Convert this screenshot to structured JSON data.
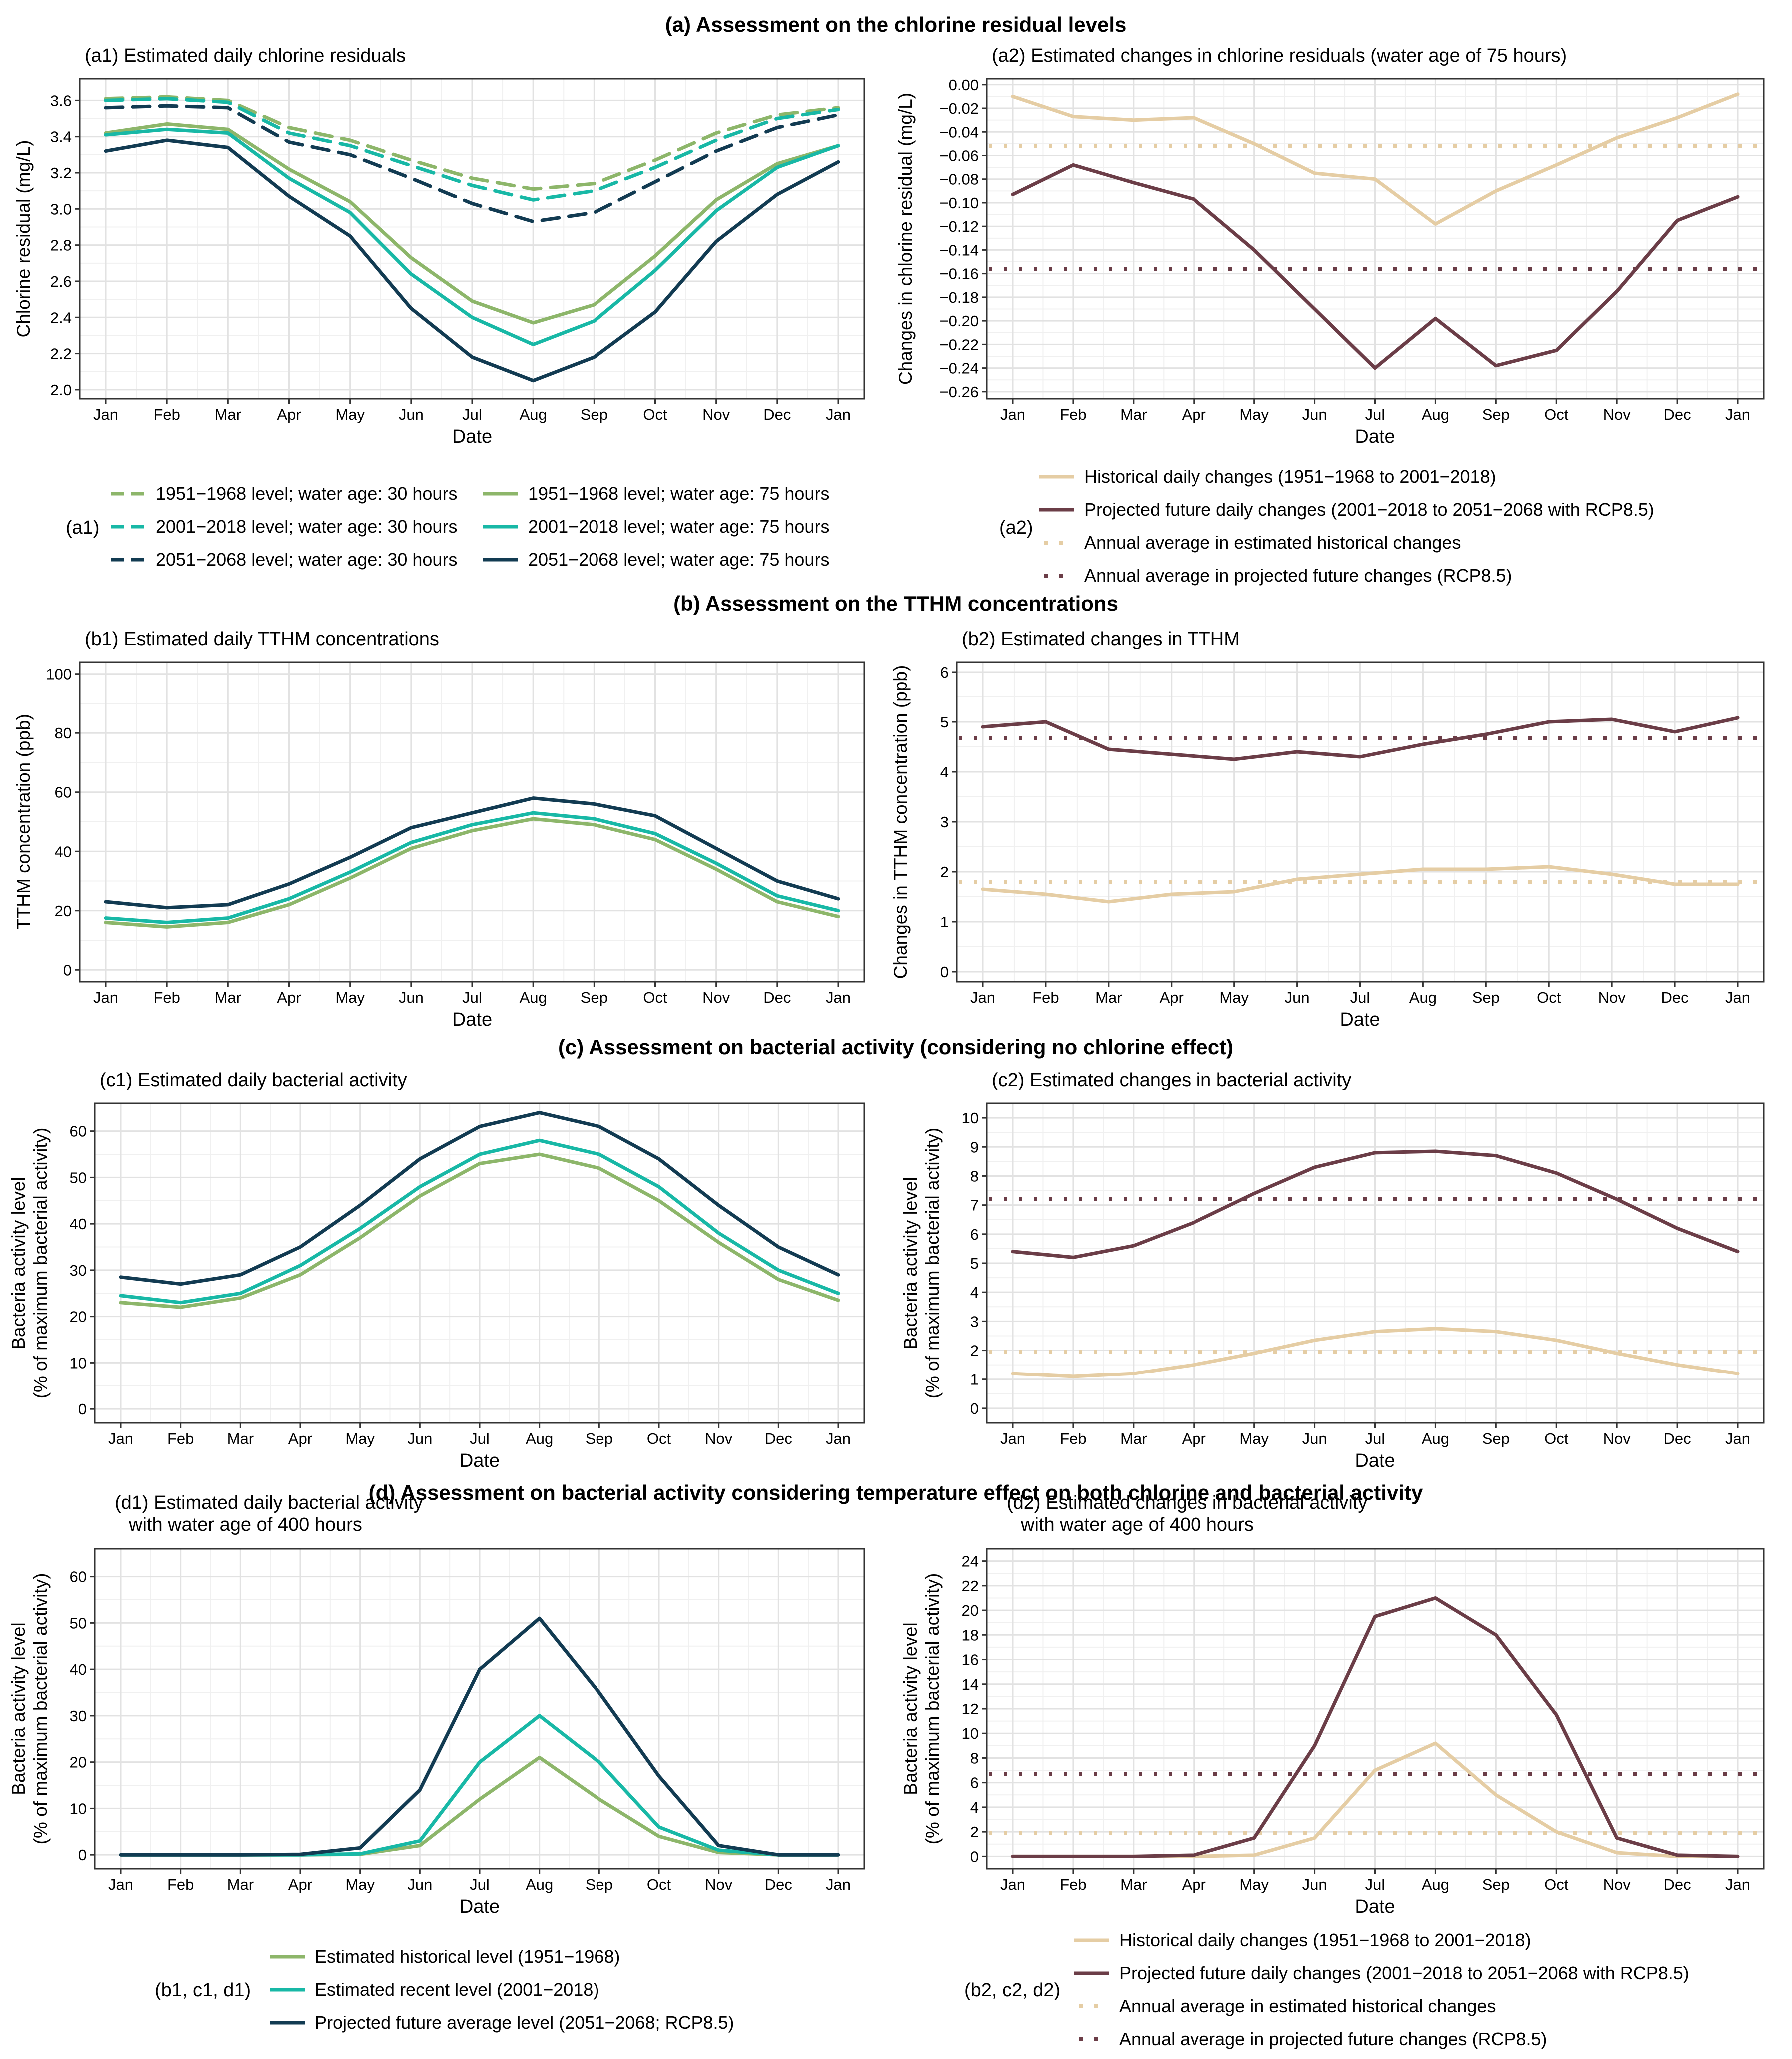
{
  "colors": {
    "hist": "#8db66a",
    "recent": "#18b8a6",
    "future": "#123b52",
    "hist_change": "#e5cda4",
    "future_change": "#6b3d47"
  },
  "months": [
    "Jan",
    "Feb",
    "Mar",
    "Apr",
    "May",
    "Jun",
    "Jul",
    "Aug",
    "Sep",
    "Oct",
    "Nov",
    "Dec",
    "Jan"
  ],
  "sections": {
    "a": "(a) Assessment on the chlorine residual levels",
    "b": "(b) Assessment on the TTHM concentrations",
    "c": "(c) Assessment on bacterial activity (considering no chlorine effect)",
    "d": "(d) Assessment on bacterial activity considering temperature effect on both chlorine and bacterial activity"
  },
  "legends": {
    "a1": {
      "tag": "(a1)",
      "items": [
        "1951−1968 level; water age: 30 hours",
        "2001−2018 level; water age: 30 hours",
        "2051−2068 level; water age: 30 hours",
        "1951−1968 level; water age: 75 hours",
        "2001−2018 level; water age: 75 hours",
        "2051−2068 level; water age: 75 hours"
      ]
    },
    "a2": {
      "tag": "(a2)",
      "items": [
        "Historical daily changes (1951−1968 to 2001−2018)",
        "Projected future daily changes (2001−2018 to 2051−2068 with RCP8.5)",
        "Annual average in estimated historical changes",
        "Annual average in projected future changes (RCP8.5)"
      ]
    },
    "bcd1": {
      "tag": "(b1, c1, d1)",
      "items": [
        "Estimated historical level (1951−1968)",
        "Estimated recent level (2001−2018)",
        "Projected future average level (2051−2068; RCP8.5)"
      ]
    },
    "bcd2": {
      "tag": "(b2, c2, d2)",
      "items": [
        "Historical daily changes (1951−1968 to 2001−2018)",
        "Projected future daily changes (2001−2018 to 2051−2068 with RCP8.5)",
        "Annual average in estimated historical changes",
        "Annual average in projected future changes (RCP8.5)"
      ]
    }
  },
  "chart_data": [
    {
      "id": "a1",
      "type": "line",
      "title": "(a1) Estimated daily chlorine residuals",
      "xlabel": "Date",
      "ylabel": "Chlorine residual (mg/L)",
      "ylim": [
        1.95,
        3.72
      ],
      "yticks": [
        2.0,
        2.2,
        2.4,
        2.6,
        2.8,
        3.0,
        3.2,
        3.4,
        3.6
      ],
      "series": [
        {
          "name": "1951−1968 level; water age: 30 hours",
          "color": "hist",
          "dash": true,
          "values": [
            3.61,
            3.62,
            3.6,
            3.45,
            3.38,
            3.27,
            3.17,
            3.11,
            3.14,
            3.27,
            3.42,
            3.52,
            3.56
          ]
        },
        {
          "name": "2001−2018 level; water age: 30 hours",
          "color": "recent",
          "dash": true,
          "values": [
            3.6,
            3.61,
            3.59,
            3.42,
            3.35,
            3.24,
            3.13,
            3.05,
            3.1,
            3.23,
            3.38,
            3.5,
            3.55
          ]
        },
        {
          "name": "2051−2068 level; water age: 30 hours",
          "color": "future",
          "dash": true,
          "values": [
            3.56,
            3.57,
            3.56,
            3.37,
            3.3,
            3.17,
            3.03,
            2.93,
            2.98,
            3.15,
            3.32,
            3.45,
            3.52
          ]
        },
        {
          "name": "1951−1968 level; water age: 75 hours",
          "color": "hist",
          "dash": false,
          "values": [
            3.42,
            3.47,
            3.44,
            3.22,
            3.04,
            2.73,
            2.49,
            2.37,
            2.47,
            2.74,
            3.05,
            3.25,
            3.35
          ]
        },
        {
          "name": "2001−2018 level; water age: 75 hours",
          "color": "recent",
          "dash": false,
          "values": [
            3.41,
            3.44,
            3.42,
            3.17,
            2.98,
            2.64,
            2.4,
            2.25,
            2.38,
            2.66,
            2.99,
            3.23,
            3.35
          ]
        },
        {
          "name": "2051−2068 level; water age: 75 hours",
          "color": "future",
          "dash": false,
          "values": [
            3.32,
            3.38,
            3.34,
            3.07,
            2.85,
            2.45,
            2.18,
            2.05,
            2.18,
            2.43,
            2.82,
            3.08,
            3.26
          ]
        }
      ]
    },
    {
      "id": "a2",
      "type": "line",
      "title": "(a2) Estimated changes in chlorine residuals (water age of 75 hours)",
      "xlabel": "Date",
      "ylabel": "Changes in chlorine residual (mg/L)",
      "ylim": [
        -0.266,
        0.005
      ],
      "yticks": [
        0.0,
        -0.02,
        -0.04,
        -0.06,
        -0.08,
        -0.1,
        -0.12,
        -0.14,
        -0.16,
        -0.18,
        -0.2,
        -0.22,
        -0.24,
        -0.26
      ],
      "tick_labels": [
        "0.00",
        "−0.02",
        "−0.04",
        "−0.06",
        "−0.08",
        "−0.10",
        "−0.12",
        "−0.14",
        "−0.16",
        "−0.18",
        "−0.20",
        "−0.22",
        "−0.24",
        "−0.26"
      ],
      "series": [
        {
          "name": "Historical daily changes (1951−1968 to 2001−2018)",
          "color": "hist_change",
          "values": [
            -0.01,
            -0.027,
            -0.03,
            -0.028,
            -0.05,
            -0.075,
            -0.08,
            -0.118,
            -0.09,
            -0.068,
            -0.045,
            -0.028,
            -0.008
          ]
        },
        {
          "name": "Projected future daily changes (2001−2018 to 2051−2068 with RCP8.5)",
          "color": "future_change",
          "values": [
            -0.093,
            -0.068,
            -0.083,
            -0.097,
            -0.14,
            -0.19,
            -0.24,
            -0.198,
            -0.238,
            -0.225,
            -0.175,
            -0.115,
            -0.095
          ]
        }
      ],
      "hlines": [
        {
          "name": "Annual average in estimated historical changes",
          "color": "hist_change",
          "y": -0.052
        },
        {
          "name": "Annual average in projected future changes (RCP8.5)",
          "color": "future_change",
          "y": -0.156
        }
      ]
    },
    {
      "id": "b1",
      "type": "line",
      "title": "(b1) Estimated daily TTHM concentrations",
      "xlabel": "Date",
      "ylabel": "TTHM concentration (ppb)",
      "ylim": [
        -4,
        104
      ],
      "yticks": [
        0,
        20,
        40,
        60,
        80,
        100
      ],
      "series": [
        {
          "name": "Estimated historical level (1951−1968)",
          "color": "hist",
          "values": [
            16,
            14.5,
            16,
            22,
            31,
            41,
            47,
            51,
            49,
            44,
            34,
            23,
            18
          ]
        },
        {
          "name": "Estimated recent level (2001−2018)",
          "color": "recent",
          "values": [
            17.5,
            16,
            17.5,
            24,
            33,
            43,
            49,
            53,
            51,
            46,
            36,
            25,
            20
          ]
        },
        {
          "name": "Projected future average level (2051−2068; RCP8.5)",
          "color": "future",
          "values": [
            23,
            21,
            22,
            29,
            38,
            48,
            53,
            58,
            56,
            52,
            41,
            30,
            24
          ]
        }
      ]
    },
    {
      "id": "b2",
      "type": "line",
      "title": "(b2) Estimated changes in TTHM",
      "xlabel": "Date",
      "ylabel": "Changes in TTHM concentration (ppb)",
      "ylim": [
        -0.2,
        6.2
      ],
      "yticks": [
        0,
        1,
        2,
        3,
        4,
        5,
        6
      ],
      "series": [
        {
          "name": "Historical daily changes (1951−1968 to 2001−2018)",
          "color": "hist_change",
          "values": [
            1.65,
            1.55,
            1.4,
            1.55,
            1.6,
            1.85,
            1.95,
            2.05,
            2.05,
            2.1,
            1.95,
            1.75,
            1.75
          ]
        },
        {
          "name": "Projected future daily changes (2001−2018 to 2051−2068 with RCP8.5)",
          "color": "future_change",
          "values": [
            4.9,
            5.0,
            4.45,
            4.35,
            4.25,
            4.4,
            4.3,
            4.55,
            4.75,
            5.0,
            5.05,
            4.8,
            5.08
          ]
        }
      ],
      "hlines": [
        {
          "name": "Annual average in estimated historical changes",
          "color": "hist_change",
          "y": 1.8
        },
        {
          "name": "Annual average in projected future changes (RCP8.5)",
          "color": "future_change",
          "y": 4.68
        }
      ]
    },
    {
      "id": "c1",
      "type": "line",
      "title": "(c1) Estimated daily bacterial activity",
      "xlabel": "Date",
      "ylabel": "Bacteria activity level",
      "ylabel2": "(% of maximum bacterial activity)",
      "ylim": [
        -3,
        66
      ],
      "yticks": [
        0,
        10,
        20,
        30,
        40,
        50,
        60
      ],
      "series": [
        {
          "name": "Estimated historical level (1951−1968)",
          "color": "hist",
          "values": [
            23,
            22,
            24,
            29,
            37,
            46,
            53,
            55,
            52,
            45,
            36,
            28,
            23.5
          ]
        },
        {
          "name": "Estimated recent level (2001−2018)",
          "color": "recent",
          "values": [
            24.5,
            23,
            25,
            31,
            39,
            48,
            55,
            58,
            55,
            48,
            38,
            30,
            25
          ]
        },
        {
          "name": "Projected future average level (2051−2068; RCP8.5)",
          "color": "future",
          "values": [
            28.5,
            27,
            29,
            35,
            44,
            54,
            61,
            64,
            61,
            54,
            44,
            35,
            29
          ]
        }
      ]
    },
    {
      "id": "c2",
      "type": "line",
      "title": "(c2) Estimated changes in bacterial activity",
      "xlabel": "Date",
      "ylabel": "Bacteria activity level",
      "ylabel2": "(% of maximum bacterial activity)",
      "ylim": [
        -0.5,
        10.5
      ],
      "yticks": [
        0,
        1,
        2,
        3,
        4,
        5,
        6,
        7,
        8,
        9,
        10
      ],
      "series": [
        {
          "name": "Historical daily changes (1951−1968 to 2001−2018)",
          "color": "hist_change",
          "values": [
            1.2,
            1.1,
            1.2,
            1.5,
            1.9,
            2.35,
            2.65,
            2.75,
            2.65,
            2.35,
            1.9,
            1.5,
            1.2
          ]
        },
        {
          "name": "Projected future daily changes (2001−2018 to 2051−2068 with RCP8.5)",
          "color": "future_change",
          "values": [
            5.4,
            5.2,
            5.6,
            6.4,
            7.4,
            8.3,
            8.8,
            8.85,
            8.7,
            8.1,
            7.2,
            6.2,
            5.4
          ]
        }
      ],
      "hlines": [
        {
          "name": "Annual average in estimated historical changes",
          "color": "hist_change",
          "y": 1.95
        },
        {
          "name": "Annual average in projected future changes (RCP8.5)",
          "color": "future_change",
          "y": 7.2
        }
      ]
    },
    {
      "id": "d1",
      "type": "line",
      "title": "(d1) Estimated daily bacterial activity",
      "title2": "with water age of 400 hours",
      "xlabel": "Date",
      "ylabel": "Bacteria activity level",
      "ylabel2": "(% of maximum bacterial activity)",
      "ylim": [
        -3,
        66
      ],
      "yticks": [
        0,
        10,
        20,
        30,
        40,
        50,
        60
      ],
      "series": [
        {
          "name": "Estimated historical level (1951−1968)",
          "color": "hist",
          "values": [
            0,
            0,
            0,
            0,
            0.1,
            2,
            12,
            21,
            12,
            4,
            0.5,
            0,
            0
          ]
        },
        {
          "name": "Estimated recent level (2001−2018)",
          "color": "recent",
          "values": [
            0,
            0,
            0,
            0,
            0.2,
            3,
            20,
            30,
            20,
            6,
            1,
            0,
            0
          ]
        },
        {
          "name": "Projected future average level (2051−2068; RCP8.5)",
          "color": "future",
          "values": [
            0,
            0,
            0,
            0.1,
            1.5,
            14,
            40,
            51,
            35,
            17,
            2,
            0,
            0
          ]
        }
      ]
    },
    {
      "id": "d2",
      "type": "line",
      "title": "(d2) Estimated changes in bacterial activity",
      "title2": "with water age of 400 hours",
      "xlabel": "Date",
      "ylabel": "Bacteria activity level",
      "ylabel2": "(% of maximum bacterial activity)",
      "ylim": [
        -1,
        25
      ],
      "yticks": [
        0,
        2,
        4,
        6,
        8,
        10,
        12,
        14,
        16,
        18,
        20,
        22,
        24
      ],
      "series": [
        {
          "name": "Historical daily changes (1951−1968 to 2001−2018)",
          "color": "hist_change",
          "values": [
            0,
            0,
            0,
            0,
            0.1,
            1.5,
            7,
            9.2,
            5,
            2,
            0.3,
            0,
            0
          ]
        },
        {
          "name": "Projected future daily changes (2001−2018 to 2051−2068 with RCP8.5)",
          "color": "future_change",
          "values": [
            0,
            0,
            0,
            0.1,
            1.5,
            9,
            19.5,
            21,
            18,
            11.5,
            1.5,
            0.1,
            0
          ]
        }
      ],
      "hlines": [
        {
          "name": "Annual average in estimated historical changes",
          "color": "hist_change",
          "y": 1.9
        },
        {
          "name": "Annual average in projected future changes (RCP8.5)",
          "color": "future_change",
          "y": 6.7
        }
      ]
    }
  ]
}
